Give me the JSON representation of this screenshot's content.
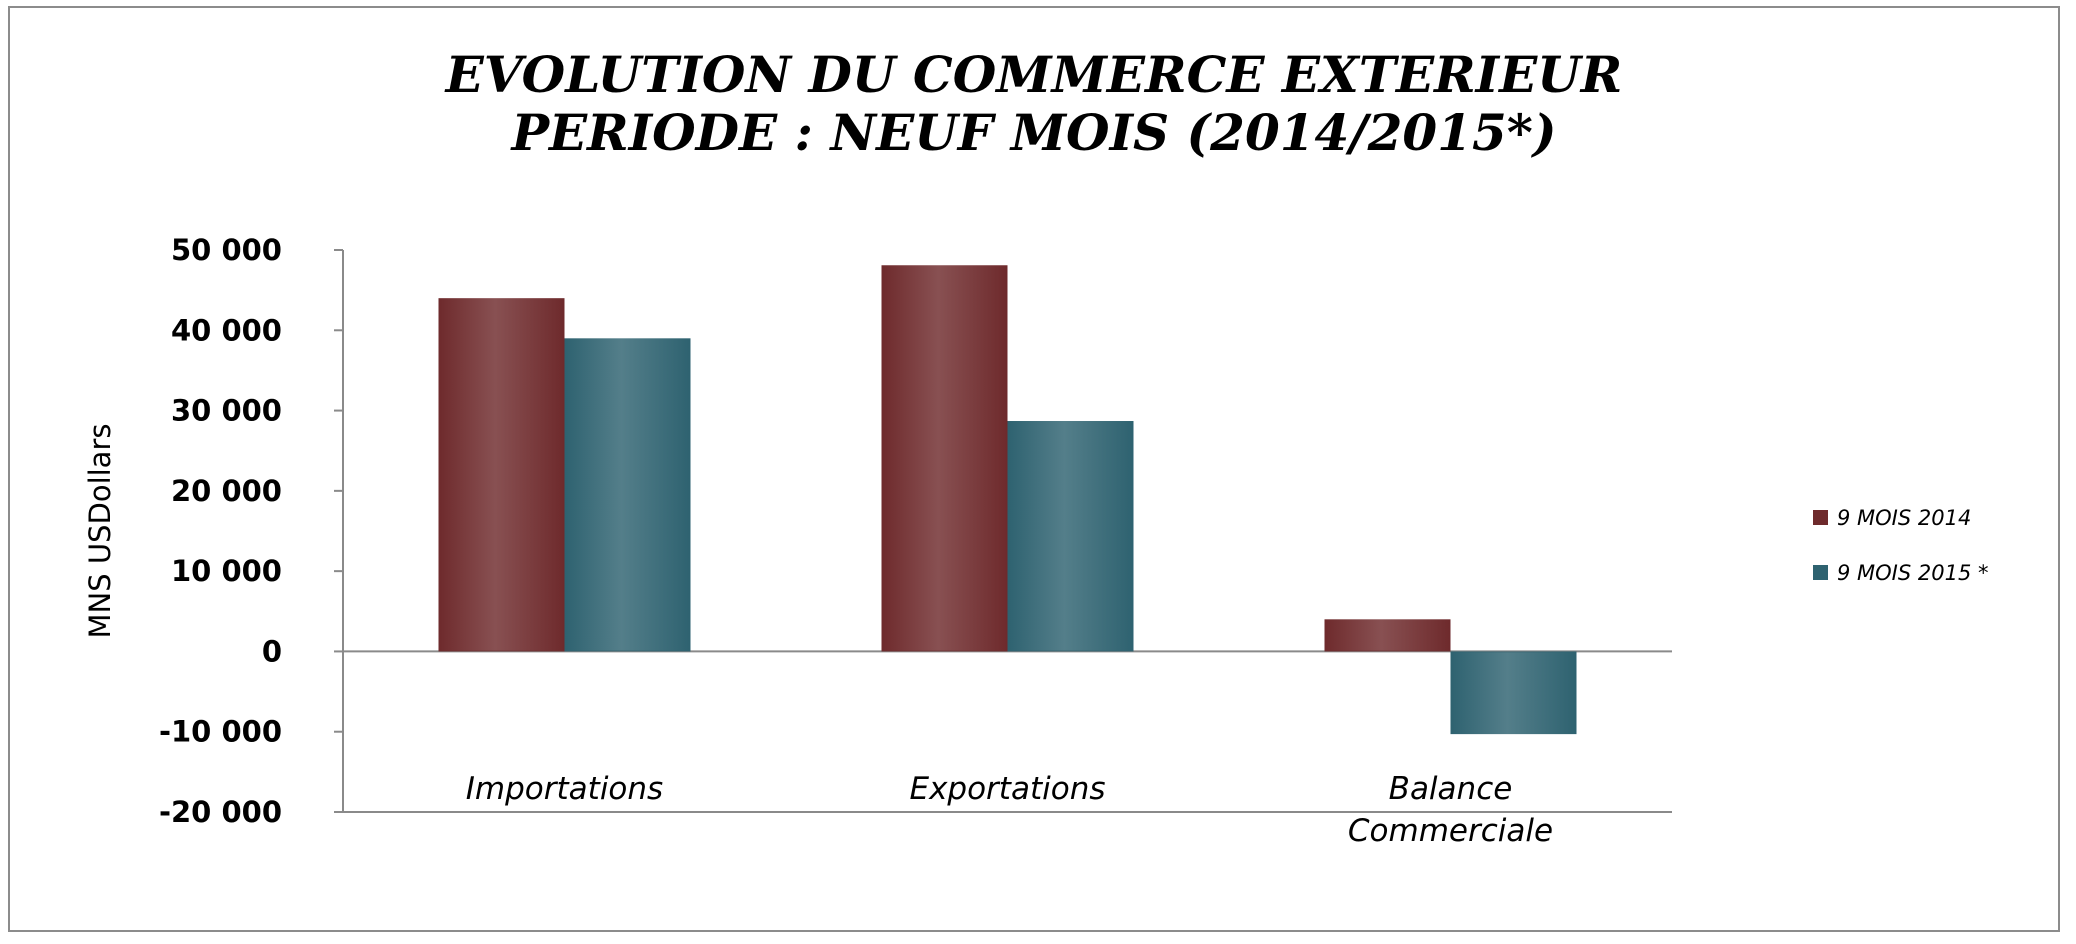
{
  "chart_data": {
    "type": "bar",
    "title_lines": [
      "EVOLUTION DU COMMERCE EXTERIEUR",
      "PERIODE : NEUF MOIS (2014/2015*)"
    ],
    "ylabel": "MNS USDollars",
    "ylim": [
      -20000,
      50000
    ],
    "yticks": [
      50000,
      40000,
      30000,
      20000,
      10000,
      0,
      -10000,
      -20000
    ],
    "ytick_labels": [
      "50 000",
      "40 000",
      "30 000",
      "20 000",
      "10 000",
      "0",
      "-10 000",
      "-20 000"
    ],
    "categories": [
      "Importations",
      "Exportations",
      "Balance Commerciale"
    ],
    "category_lines": [
      [
        "Importations"
      ],
      [
        "Exportations"
      ],
      [
        "Balance",
        "Commerciale"
      ]
    ],
    "series": [
      {
        "name": "9 MOIS 2014",
        "color": "#6e2a2c",
        "values": [
          44000,
          48100,
          4000
        ]
      },
      {
        "name": "9 MOIS 2015 *",
        "color": "#2e6270",
        "values": [
          39000,
          28700,
          -10300
        ]
      }
    ],
    "legend_position": "right",
    "grid": false
  }
}
